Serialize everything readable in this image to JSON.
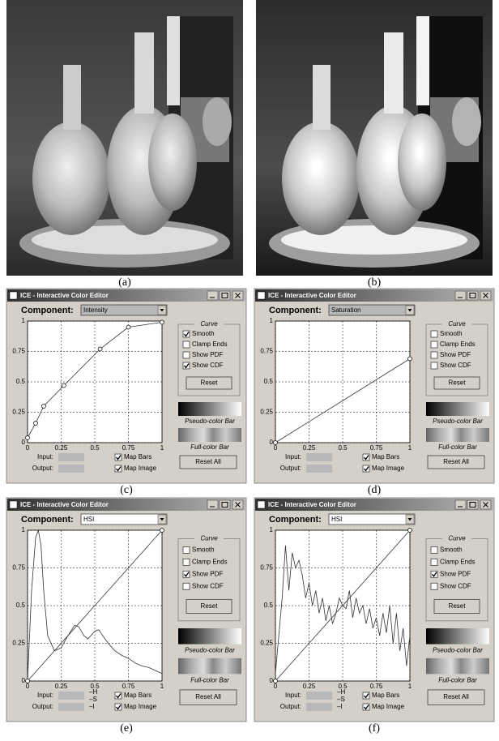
{
  "photos": [
    {
      "caption": "(a)"
    },
    {
      "caption": "(b)"
    }
  ],
  "ui": {
    "title": "ICE - Interactive Color Editor",
    "component_label": "Component:",
    "curve_group": "Curve",
    "checkbox_labels": [
      "Smooth",
      "Clamp Ends",
      "Show PDF",
      "Show CDF"
    ],
    "reset": "Reset",
    "reset_all": "Reset All",
    "pseudo_bar": "Pseudo-color Bar",
    "full_bar": "Full-color Bar",
    "input": "Input:",
    "output": "Output:",
    "map_bars": "Map Bars",
    "map_image": "Map Image",
    "ticks": [
      0,
      0.25,
      0.5,
      0.75,
      1
    ]
  },
  "editors": [
    {
      "caption": "(c)",
      "component": "Intensity",
      "checked": [
        true,
        false,
        false,
        true
      ],
      "map_checked": [
        true,
        true
      ],
      "points": {
        "x": [
          0,
          0.06,
          0.12,
          0.27,
          0.54,
          0.75,
          1
        ],
        "y": [
          0.04,
          0.16,
          0.3,
          0.47,
          0.77,
          0.95,
          0.99
        ]
      }
    },
    {
      "caption": "(d)",
      "component": "Saturation",
      "checked": [
        false,
        false,
        false,
        false
      ],
      "map_checked": [
        true,
        true
      ],
      "points": {
        "x": [
          0,
          1
        ],
        "y": [
          0,
          0.69
        ]
      }
    },
    {
      "caption": "(e)",
      "component": "HSI",
      "checked": [
        false,
        false,
        true,
        false
      ],
      "map_checked": [
        true,
        true
      ],
      "channel_labels": [
        "–H",
        "–S",
        "–I"
      ],
      "points": {
        "x": [
          0,
          1
        ],
        "y": [
          0,
          1
        ]
      },
      "pdf": {
        "x": [
          0,
          0.03,
          0.06,
          0.08,
          0.1,
          0.12,
          0.15,
          0.2,
          0.25,
          0.3,
          0.35,
          0.38,
          0.42,
          0.45,
          0.5,
          0.53,
          0.56,
          0.6,
          0.65,
          0.7,
          0.75,
          0.8,
          0.85,
          0.9,
          0.95,
          1
        ],
        "y": [
          0,
          0.6,
          0.95,
          1,
          0.9,
          0.6,
          0.3,
          0.2,
          0.22,
          0.3,
          0.37,
          0.36,
          0.3,
          0.28,
          0.33,
          0.34,
          0.3,
          0.25,
          0.2,
          0.17,
          0.15,
          0.12,
          0.1,
          0.09,
          0.07,
          0.05
        ]
      }
    },
    {
      "caption": "(f)",
      "component": "HSI",
      "checked": [
        false,
        false,
        true,
        false
      ],
      "map_checked": [
        true,
        true
      ],
      "channel_labels": [
        "–H",
        "–S",
        "–I"
      ],
      "points": {
        "x": [
          0,
          1
        ],
        "y": [
          0,
          1
        ]
      },
      "pdf": {
        "x": [
          0,
          0.025,
          0.05,
          0.075,
          0.1,
          0.125,
          0.15,
          0.175,
          0.2,
          0.225,
          0.25,
          0.275,
          0.3,
          0.325,
          0.35,
          0.375,
          0.4,
          0.425,
          0.45,
          0.475,
          0.5,
          0.525,
          0.55,
          0.575,
          0.6,
          0.625,
          0.65,
          0.675,
          0.7,
          0.725,
          0.75,
          0.775,
          0.8,
          0.825,
          0.85,
          0.875,
          0.9,
          0.925,
          0.95,
          0.975,
          1
        ],
        "y": [
          0.05,
          0.3,
          0.55,
          0.9,
          0.6,
          0.85,
          0.75,
          0.8,
          0.7,
          0.55,
          0.65,
          0.5,
          0.6,
          0.45,
          0.55,
          0.4,
          0.5,
          0.38,
          0.45,
          0.55,
          0.5,
          0.48,
          0.6,
          0.42,
          0.55,
          0.45,
          0.5,
          0.38,
          0.48,
          0.35,
          0.42,
          0.3,
          0.45,
          0.32,
          0.5,
          0.25,
          0.45,
          0.2,
          0.35,
          0.1,
          0.3
        ]
      }
    }
  ]
}
